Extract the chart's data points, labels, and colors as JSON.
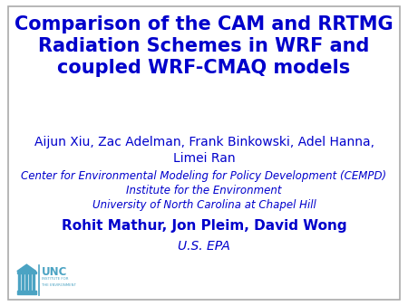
{
  "background_color": "#ffffff",
  "title_line1": "Comparison of the CAM and RRTMG",
  "title_line2": "Radiation Schemes in WRF and",
  "title_line3": "coupled WRF-CMAQ models",
  "title_color": "#0000cc",
  "title_fontsize": 15,
  "author_line1": "Aijun Xiu, Zac Adelman, Frank Binkowski, Adel Hanna,",
  "author_line2": "Limei Ran",
  "author_color": "#0000cc",
  "author_fontsize": 10,
  "affil_line1": "Center for Environmental Modeling for Policy Development (CEMPD)",
  "affil_line2": "Institute for the Environment",
  "affil_line3": "University of North Carolina at Chapel Hill",
  "affil_color": "#0000cc",
  "affil_fontsize": 8.5,
  "epa_author_line": "Rohit Mathur, Jon Pleim, David Wong",
  "epa_author_color": "#0000cc",
  "epa_author_fontsize": 11,
  "epa_line": "U.S. EPA",
  "epa_color": "#0000cc",
  "epa_fontsize": 10,
  "border_color": "#aaaaaa",
  "unc_logo_color": "#4ba3c3",
  "figure_width": 4.5,
  "figure_height": 3.38,
  "dpi": 100
}
